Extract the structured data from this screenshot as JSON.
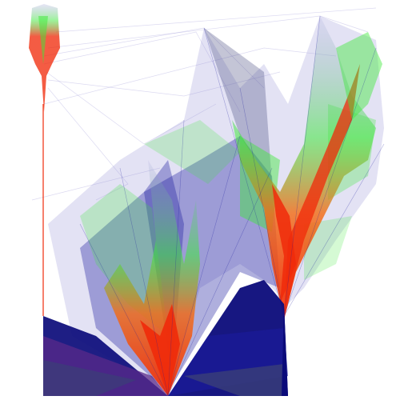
{
  "image": {
    "subject": "abstract-edge-bundle-fan-graphic",
    "palette": {
      "background": "#ffffff",
      "deep_blue": "#1a1a9e",
      "navy": "#0b0b7a",
      "lavender": "#9a96d8",
      "green": "#3ee83a",
      "red": "#f02a0a",
      "orange": "#f46a12",
      "slate": "#3a3f78",
      "purple": "#5a2a8a"
    }
  }
}
